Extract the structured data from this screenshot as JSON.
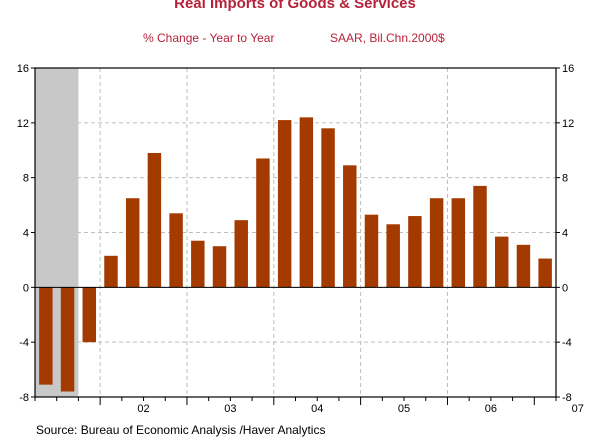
{
  "chart_data": {
    "type": "bar",
    "title": "Real Imports of Goods & Services",
    "subtitle_left": "% Change - Year to Year",
    "subtitle_right": "SAAR, Bil.Chn.2000$",
    "source": "Source:  Bureau of Economic Analysis /Haver Analytics",
    "ylim": [
      -8,
      16
    ],
    "yticks": [
      -8,
      -4,
      0,
      4,
      8,
      12,
      16
    ],
    "x_year_labels": [
      "02",
      "03",
      "04",
      "05",
      "06",
      "07"
    ],
    "recession_shading": {
      "from_quarter_index": 0,
      "to_quarter_index": 1,
      "label": ""
    },
    "bar_color": "#a33a00",
    "categories": [
      "2001Q2",
      "2001Q3",
      "2001Q4",
      "2002Q1",
      "2002Q2",
      "2002Q3",
      "2002Q4",
      "2003Q1",
      "2003Q2",
      "2003Q3",
      "2003Q4",
      "2004Q1",
      "2004Q2",
      "2004Q3",
      "2004Q4",
      "2005Q1",
      "2005Q2",
      "2005Q3",
      "2005Q4",
      "2006Q1",
      "2006Q2",
      "2006Q3",
      "2006Q4",
      "2007Q1"
    ],
    "values": [
      -7.1,
      -7.6,
      -4.0,
      2.3,
      6.5,
      9.8,
      5.4,
      3.4,
      3.0,
      4.9,
      9.4,
      12.2,
      12.4,
      11.6,
      8.9,
      5.3,
      4.6,
      5.2,
      6.5,
      6.5,
      7.4,
      3.7,
      3.1,
      2.1
    ]
  }
}
